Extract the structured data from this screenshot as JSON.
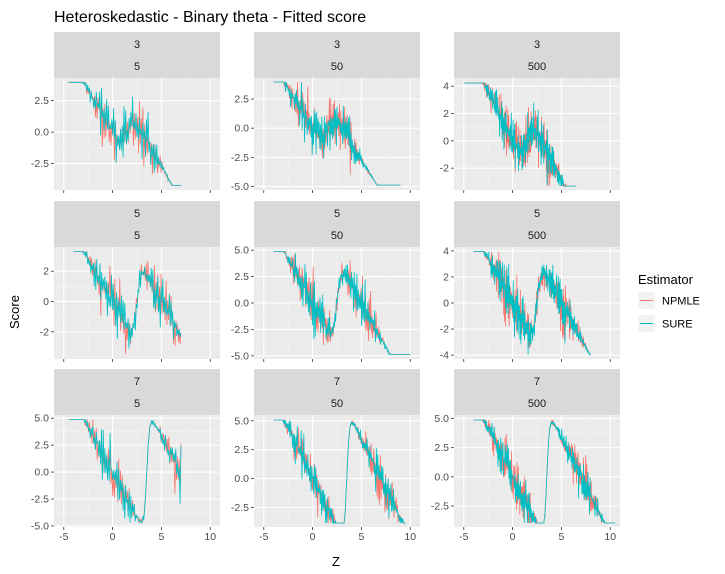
{
  "chart_data": {
    "type": "line",
    "title": "Heteroskedastic - Binary theta - Fitted score",
    "xlabel": "Z",
    "ylabel": "Score",
    "legend": {
      "title": "Estimator",
      "position": "right",
      "entries": [
        {
          "name": "NPMLE",
          "color": "#F8766D"
        },
        {
          "name": "SURE",
          "color": "#00BFC4"
        }
      ]
    },
    "xlim": [
      -6,
      11
    ],
    "x_ticks": [
      -5,
      0,
      5,
      10
    ],
    "grid": true,
    "panels": [
      {
        "strip_top": "3",
        "strip_bottom": "5",
        "ylim": [
          -4.6,
          4.3
        ],
        "y_ticks": [
          -2.5,
          0.0,
          2.5
        ],
        "y_tick_labels": [
          "-2.5",
          "0.0",
          "2.5"
        ],
        "x_range": [
          -4.5,
          7
        ]
      },
      {
        "strip_top": "3",
        "strip_bottom": "50",
        "ylim": [
          -5.3,
          4.3
        ],
        "y_ticks": [
          -5.0,
          -2.5,
          0.0,
          2.5
        ],
        "y_tick_labels": [
          "-5.0",
          "-2.5",
          "0.0",
          "2.5"
        ],
        "x_range": [
          -4,
          9
        ]
      },
      {
        "strip_top": "3",
        "strip_bottom": "500",
        "ylim": [
          -3.6,
          4.6
        ],
        "y_ticks": [
          -2,
          0,
          2,
          4
        ],
        "y_tick_labels": [
          "-2",
          "0",
          "2",
          "4"
        ],
        "x_range": [
          -5,
          6.5
        ]
      },
      {
        "strip_top": "5",
        "strip_bottom": "5",
        "ylim": [
          -3.8,
          3.6
        ],
        "y_ticks": [
          -2,
          0,
          2
        ],
        "y_tick_labels": [
          "-2",
          "0",
          "2"
        ],
        "x_range": [
          -4,
          7
        ]
      },
      {
        "strip_top": "5",
        "strip_bottom": "50",
        "ylim": [
          -5.3,
          5.3
        ],
        "y_ticks": [
          -5.0,
          -2.5,
          0.0,
          2.5,
          5.0
        ],
        "y_tick_labels": [
          "-5.0",
          "-2.5",
          "0.0",
          "2.5",
          "5.0"
        ],
        "x_range": [
          -4,
          10
        ]
      },
      {
        "strip_top": "5",
        "strip_bottom": "500",
        "ylim": [
          -4.3,
          4.3
        ],
        "y_ticks": [
          -4,
          -2,
          0,
          2,
          4
        ],
        "y_tick_labels": [
          "-4",
          "-2",
          "0",
          "2",
          "4"
        ],
        "x_range": [
          -4,
          8
        ]
      },
      {
        "strip_top": "7",
        "strip_bottom": "5",
        "ylim": [
          -5.1,
          5.3
        ],
        "y_ticks": [
          -5.0,
          -2.5,
          0.0,
          2.5,
          5.0
        ],
        "y_tick_labels": [
          "-5.0",
          "-2.5",
          "0.0",
          "2.5",
          "5.0"
        ],
        "x_range": [
          -4.5,
          7
        ]
      },
      {
        "strip_top": "7",
        "strip_bottom": "50",
        "ylim": [
          -4.2,
          5.5
        ],
        "y_ticks": [
          -2.5,
          0.0,
          2.5,
          5.0
        ],
        "y_tick_labels": [
          "-2.5",
          "0.0",
          "2.5",
          "5.0"
        ],
        "x_range": [
          -4,
          9.5
        ]
      },
      {
        "strip_top": "7",
        "strip_bottom": "500",
        "ylim": [
          -4.3,
          5.3
        ],
        "y_ticks": [
          -2.5,
          0.0,
          2.5,
          5.0
        ],
        "y_tick_labels": [
          "-2.5",
          "0.0",
          "2.5",
          "5.0"
        ],
        "x_range": [
          -4,
          10.5
        ]
      }
    ]
  }
}
